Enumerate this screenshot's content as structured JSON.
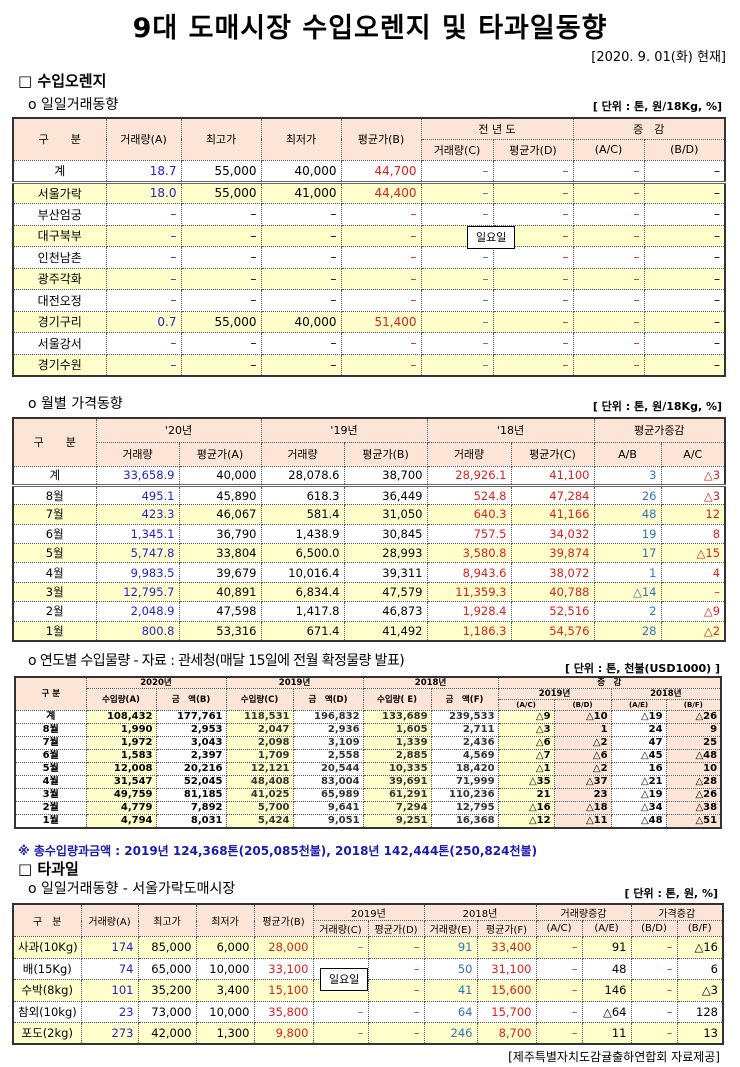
{
  "title": "9대 도매시장 수입오렌지 및 타과일동향",
  "date": "[2020. 9. 01(화) 현재]",
  "orange": {
    "section": "□ 수입오렌지",
    "daily": {
      "subtitle": "o 일일거래동향",
      "unit": "[ 단위 : 톤, 원/18Kg, %]",
      "headers": {
        "gubun": "구　　분",
        "vol": "거래량(A)",
        "high": "최고가",
        "low": "최저가",
        "avg": "평균가(B)",
        "prev": "전 년 도",
        "prev_vol": "거래량(C)",
        "prev_avg": "평균가(D)",
        "change": "증　감",
        "ac": "(A/C)",
        "bd": "(B/D)"
      },
      "holiday_note": "일요일",
      "rows": [
        [
          "계",
          "18.7",
          "55,000",
          "40,000",
          "44,700",
          "–",
          "–",
          "–",
          "–"
        ],
        [
          "서울가락",
          "18.0",
          "55,000",
          "41,000",
          "44,400",
          "–",
          "–",
          "–",
          "–"
        ],
        [
          "부산엄궁",
          "–",
          "–",
          "–",
          "–",
          "–",
          "–",
          "–",
          "–"
        ],
        [
          "대구북부",
          "–",
          "–",
          "–",
          "–",
          "",
          "–",
          "–",
          "–"
        ],
        [
          "인천남촌",
          "–",
          "–",
          "–",
          "–",
          "–",
          "–",
          "–",
          "–"
        ],
        [
          "광주각화",
          "–",
          "–",
          "–",
          "–",
          "–",
          "–",
          "–",
          "–"
        ],
        [
          "대전오정",
          "–",
          "–",
          "–",
          "–",
          "–",
          "–",
          "–",
          "–"
        ],
        [
          "경기구리",
          "0.7",
          "55,000",
          "40,000",
          "51,400",
          "–",
          "–",
          "–",
          "–"
        ],
        [
          "서울강서",
          "–",
          "–",
          "–",
          "–",
          "–",
          "–",
          "–",
          "–"
        ],
        [
          "경기수원",
          "–",
          "–",
          "–",
          "–",
          "–",
          "–",
          "–",
          "–"
        ]
      ]
    },
    "monthly": {
      "subtitle": "o 월별 가격동향",
      "unit": "[ 단위 : 톤, 원/18Kg, %]",
      "headers": {
        "gubun": "구　　분",
        "y20": "'20년",
        "y19": "'19년",
        "y18": "'18년",
        "change": "평균가증감",
        "vol": "거래량",
        "avgA": "평균가(A)",
        "avgB": "평균가(B)",
        "avgC": "평균가(C)",
        "ab": "A/B",
        "ac": "A/C"
      },
      "rows": [
        [
          "계",
          "33,658.9",
          "40,000",
          "28,078.6",
          "38,700",
          "28,926.1",
          "41,100",
          "3",
          "△3"
        ],
        [
          "8월",
          "495.1",
          "45,890",
          "618.3",
          "36,449",
          "524.8",
          "47,284",
          "26",
          "△3"
        ],
        [
          "7월",
          "423.3",
          "46,067",
          "581.4",
          "31,050",
          "640.3",
          "41,166",
          "48",
          "12"
        ],
        [
          "6월",
          "1,345.1",
          "36,790",
          "1,438.9",
          "30,845",
          "757.5",
          "34,032",
          "19",
          "8"
        ],
        [
          "5월",
          "5,747.8",
          "33,804",
          "6,500.0",
          "28,993",
          "3,580.8",
          "39,874",
          "17",
          "△15"
        ],
        [
          "4월",
          "9,983.5",
          "39,679",
          "10,016.4",
          "39,311",
          "8,943.6",
          "38,072",
          "1",
          "4"
        ],
        [
          "3월",
          "12,795.7",
          "40,891",
          "6,834.4",
          "47,579",
          "11,359.3",
          "40,788",
          "△14",
          "–"
        ],
        [
          "2월",
          "2,048.9",
          "47,598",
          "1,417.8",
          "46,873",
          "1,928.4",
          "52,516",
          "2",
          "△9"
        ],
        [
          "1월",
          "800.8",
          "53,316",
          "671.4",
          "41,492",
          "1,186.3",
          "54,576",
          "28",
          "△2"
        ]
      ]
    },
    "imports": {
      "subtitle": "o 연도별 수입물량 - 자료 : 관세청(매달 15일에 전월 확정물량 발표)",
      "unit": "[ 단위 : 톤, 천불(USD1000) ]",
      "headers": {
        "gubun": "구 분",
        "y2020": "2020년",
        "y2019": "2019년",
        "y2018": "2018년",
        "change": "증　감",
        "c2019": "2019년",
        "c2018": "2018년",
        "qa": "수입량(A)",
        "ab": "금　액(B)",
        "qc": "수입량(C)",
        "ad": "금　액(D)",
        "qe": "수입량( E)",
        "af": "금　액(F)",
        "ac": "(A/C)",
        "bd": "(B/D)",
        "ae": "(A/E)",
        "bf": "(B/F)"
      },
      "rows": [
        [
          "계",
          "108,432",
          "177,761",
          "118,531",
          "196,832",
          "133,689",
          "239,533",
          "△9",
          "△10",
          "△19",
          "△26"
        ],
        [
          "8월",
          "1,990",
          "2,953",
          "2,047",
          "2,936",
          "1,605",
          "2,711",
          "△3",
          "1",
          "24",
          "9"
        ],
        [
          "7월",
          "1,972",
          "3,043",
          "2,098",
          "3,109",
          "1,339",
          "2,436",
          "△6",
          "△2",
          "47",
          "25"
        ],
        [
          "6월",
          "1,583",
          "2,397",
          "1,709",
          "2,558",
          "2,885",
          "4,569",
          "△7",
          "△6",
          "△45",
          "△48"
        ],
        [
          "5월",
          "12,008",
          "20,216",
          "12,121",
          "20,544",
          "10,335",
          "18,420",
          "△1",
          "△2",
          "16",
          "10"
        ],
        [
          "4월",
          "31,547",
          "52,045",
          "48,408",
          "83,004",
          "39,691",
          "71,999",
          "△35",
          "△37",
          "△21",
          "△28"
        ],
        [
          "3월",
          "49,759",
          "81,185",
          "41,025",
          "65,989",
          "61,291",
          "110,236",
          "21",
          "23",
          "△19",
          "△26"
        ],
        [
          "2월",
          "4,779",
          "7,892",
          "5,700",
          "9,641",
          "7,294",
          "12,795",
          "△16",
          "△18",
          "△34",
          "△38"
        ],
        [
          "1월",
          "4,794",
          "8,031",
          "5,424",
          "9,051",
          "9,251",
          "16,368",
          "△12",
          "△11",
          "△48",
          "△51"
        ]
      ],
      "footnote": "※ 총수입량과금액 : 2019년 124,368톤(205,085천불),  2018년 142,444톤(250,824천불)"
    }
  },
  "other": {
    "section": "□ 타과일",
    "subtitle": "o 일일거래동향 - 서울가락도매시장",
    "unit": "[ 단위 : 톤, 원, %]",
    "headers": {
      "gubun": "구　분",
      "vol": "거래량(A)",
      "high": "최고가",
      "low": "최저가",
      "avg": "평균가(B)",
      "y2019": "2019년",
      "y2018": "2018년",
      "volchg": "거래량증감",
      "pricechg": "가격증감",
      "c": "거래량(C)",
      "d": "평균가(D)",
      "e": "거래량(E)",
      "f": "평균가(F)",
      "ac": "(A/C)",
      "ae": "(A/E)",
      "bd": "(B/D)",
      "bf": "(B/F)"
    },
    "holiday_note": "일요일",
    "rows": [
      [
        "사과(10Kg)",
        "174",
        "85,000",
        "6,000",
        "28,000",
        "–",
        "–",
        "91",
        "33,400",
        "–",
        "91",
        "–",
        "△16"
      ],
      [
        "배(15Kg)",
        "74",
        "65,000",
        "10,000",
        "33,100",
        "",
        "–",
        "50",
        "31,100",
        "–",
        "48",
        "–",
        "6"
      ],
      [
        "수박(8kg)",
        "101",
        "35,200",
        "3,400",
        "15,100",
        "",
        "–",
        "41",
        "15,600",
        "–",
        "146",
        "–",
        "△3"
      ],
      [
        "참외(10kg)",
        "23",
        "73,000",
        "10,000",
        "35,800",
        "–",
        "–",
        "64",
        "15,700",
        "–",
        "△64",
        "–",
        "128"
      ],
      [
        "포도(2kg)",
        "273",
        "42,000",
        "1,300",
        "9,800",
        "–",
        "–",
        "246",
        "8,700",
        "–",
        "11",
        "–",
        "13"
      ]
    ],
    "source": "[제주특별자치도감귤출하연합회 자료제공]"
  }
}
